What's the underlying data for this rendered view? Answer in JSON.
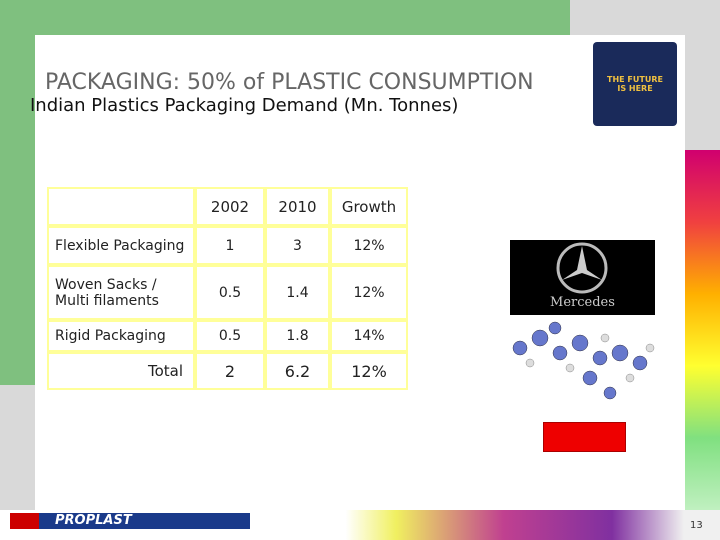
{
  "header": {
    "title": "PACKAGING: 50% of PLASTIC CONSUMPTION",
    "subtitle": "Indian Plastics Packaging Demand (Mn. Tonnes)"
  },
  "table": {
    "columns": [
      "2002",
      "2010",
      "Growth"
    ],
    "rows": [
      [
        "Flexible Packaging",
        "1",
        "3",
        "12%"
      ],
      [
        "Woven Sacks / Multi filaments",
        "0.5",
        "1.4",
        "12%"
      ],
      [
        "Rigid Packaging",
        "0.5",
        "1.8",
        "14%"
      ],
      [
        "Total",
        "2",
        "6.2",
        "12%"
      ]
    ]
  },
  "images": {
    "badge": "THE FUTURE IS HERE",
    "car_logo": "Mercedes"
  },
  "footer": {
    "logo": "PROPLAST",
    "page_number": "13"
  }
}
